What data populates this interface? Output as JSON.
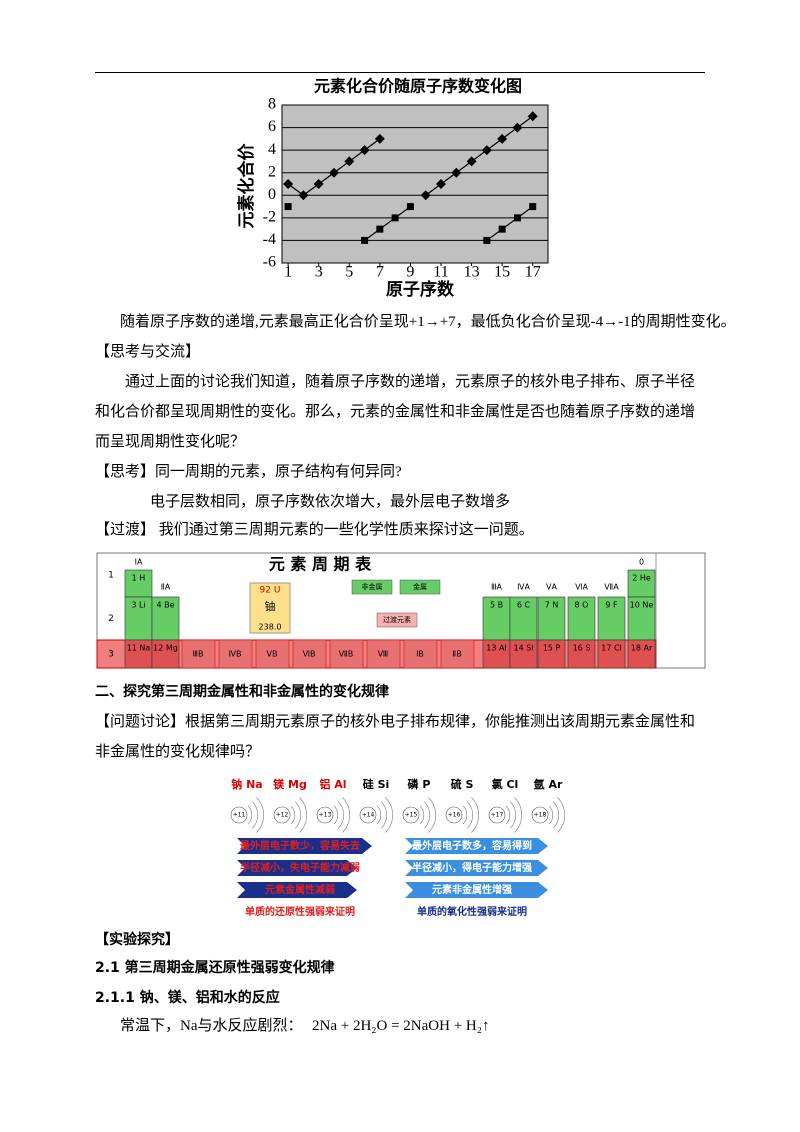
{
  "chart_data": {
    "type": "line",
    "title": "元素化合价随原子序数变化图",
    "x_label": "原子序数",
    "y_label": "元素化合价",
    "x": [
      1,
      2,
      3,
      4,
      5,
      6,
      7,
      8,
      9,
      10,
      11,
      12,
      13,
      14,
      15,
      16,
      17
    ],
    "series": [
      {
        "color": "#000000",
        "marker": "diamond",
        "values": [
          1,
          0,
          1,
          2,
          3,
          4,
          5,
          null,
          null,
          0,
          1,
          2,
          3,
          4,
          5,
          6,
          7
        ]
      },
      {
        "color": "#000000",
        "marker": "square",
        "values": [
          -1,
          null,
          null,
          null,
          null,
          -4,
          -3,
          -2,
          -1,
          null,
          null,
          null,
          null,
          -4,
          -3,
          -2,
          -1
        ]
      }
    ],
    "xlim": [
      0.6,
      18
    ],
    "ylim": [
      -6,
      8
    ],
    "xticks": [
      1,
      3,
      5,
      7,
      9,
      11,
      13,
      15,
      17
    ],
    "yticks": [
      -6,
      -4,
      -2,
      0,
      2,
      4,
      6,
      8
    ],
    "grid": true,
    "background": "#c0c0c0"
  },
  "paragraphs": [
    "随着原子序数的递增,元素最高正化合价呈现+1→+7，最低负化合价呈现-4→-1的周期性变化。",
    "【思考与交流】",
    "通过上面的讨论我们知道，随着原子序数的递增，元素原子的核外电子排布、原子半径和化合价都呈现周期性的变化。那么，元素的金属性和非金属性是否也随着原子序数的递增而呈现周期性变化呢？",
    "【思考】同一周期的元素，原子结构有何异同?",
    "电子层数相同，原子序数依次增大，最外层电子数增多",
    "【过渡】 我们通过第三周期元素的一些化学性质来探讨这一问题。",
    "二、探究第三周期金属性和非金属性的变化规律",
    "【问题讨论】根据第三周期元素原子的核外电子排布规律，你能推测出该周期元素金属性和非金属性的变化规律吗？",
    "【实验探究】",
    "2.1 第三周期金属还原性强弱变化规律",
    "2.1.1 钠、镁、铝和水的反应",
    "常温下，Na与水反应剧烈：",
    "2Na + 2H₂O = 2NaOH + H₂↑"
  ],
  "periodic_table": {
    "title": "元 素 周 期 表",
    "periods": [
      "1",
      "2",
      "3"
    ],
    "groups": [
      "ⅠA",
      "ⅡA",
      "ⅢA",
      "ⅣA",
      "ⅤA",
      "ⅥA",
      "ⅦA",
      "0"
    ],
    "transition_groups": [
      "ⅢB",
      "ⅣB",
      "ⅤB",
      "ⅥB",
      "ⅦB",
      "Ⅷ",
      "ⅠB",
      "ⅡB"
    ],
    "elements": [
      "1 H",
      "2 He",
      "3 Li",
      "4 Be",
      "5 B",
      "6 C",
      "7 N",
      "8 O",
      "9 F",
      "10 Ne",
      "11 Na",
      "12 Mg",
      "13 Al",
      "14 Si",
      "15 P",
      "16 S",
      "17 Cl",
      "18 Ar"
    ],
    "key": {
      "symbol": "92 U",
      "name": "铀",
      "mass": "238.0",
      "legend": [
        "非金属",
        "金属",
        "过渡元素"
      ]
    }
  },
  "atoms": {
    "elements": [
      "钠 Na",
      "镁 Mg",
      "铝 Al",
      "硅 Si",
      "磷 P",
      "硫 S",
      "氯 Cl",
      "氩 Ar"
    ],
    "nuclei": [
      "+11",
      "+12",
      "+13",
      "+14",
      "+15",
      "+16",
      "+17",
      "+18"
    ],
    "metal_trend": [
      "最外层电子数少，容易失去",
      "半径减小，失电子能力减弱",
      "元素金属性减弱",
      "单质的还原性强弱来证明"
    ],
    "nonmetal_trend": [
      "最外层电子数多，容易得到",
      "半径减小，得电子能力增强",
      "元素非金属性增强",
      "单质的氧化性强弱来证明"
    ]
  }
}
